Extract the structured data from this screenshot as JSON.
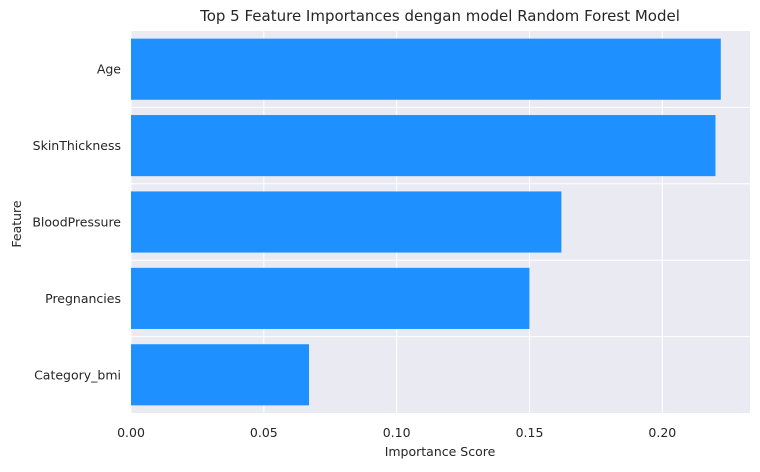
{
  "chart_data": {
    "type": "bar",
    "orientation": "horizontal",
    "title": "Top 5 Feature Importances dengan model Random Forest Model",
    "xlabel": "Importance Score",
    "ylabel": "Feature",
    "categories": [
      "Age",
      "SkinThickness",
      "BloodPressure",
      "Pregnancies",
      "Category_bmi"
    ],
    "values": [
      0.222,
      0.22,
      0.162,
      0.15,
      0.067
    ],
    "xlim": [
      0,
      0.233
    ],
    "xticks": [
      0.0,
      0.05,
      0.1,
      0.15,
      0.2
    ],
    "xtick_labels": [
      "0.00",
      "0.05",
      "0.10",
      "0.15",
      "0.20"
    ],
    "grid": true,
    "colors": {
      "bar": "#1e90ff",
      "background": "#eaeaf2",
      "grid": "#ffffff"
    }
  }
}
